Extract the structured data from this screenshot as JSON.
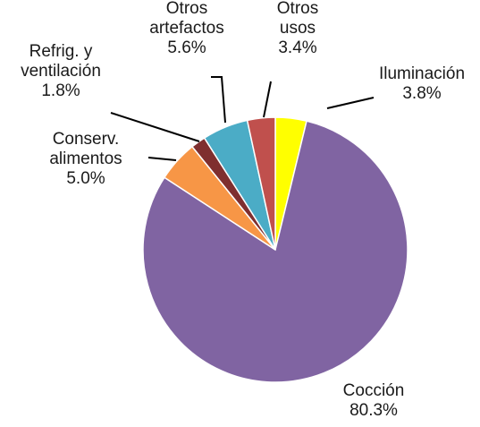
{
  "chart_data": {
    "type": "pie",
    "title": "",
    "series": [
      {
        "name": "",
        "slices": [
          {
            "label_lines": [
              "Iluminación"
            ],
            "value_text": "3.8%",
            "value": 3.8,
            "color": "#FFFF00"
          },
          {
            "label_lines": [
              "Cocción"
            ],
            "value_text": "80.3%",
            "value": 80.3,
            "color": "#8064A2"
          },
          {
            "label_lines": [
              "Conserv.",
              "alimentos"
            ],
            "value_text": "5.0%",
            "value": 5.0,
            "color": "#F79646"
          },
          {
            "label_lines": [
              "Refrig. y",
              "ventilación"
            ],
            "value_text": "1.8%",
            "value": 1.8,
            "color": "#7F2F2F"
          },
          {
            "label_lines": [
              "Otros",
              "artefactos"
            ],
            "value_text": "5.6%",
            "value": 5.6,
            "color": "#4BACC6"
          },
          {
            "label_lines": [
              "Otros",
              "usos"
            ],
            "value_text": "3.4%",
            "value": 3.4,
            "color": "#C0504D"
          }
        ]
      }
    ],
    "start_angle_deg": 0,
    "direction": "clockwise",
    "legend": "none",
    "data_labels": "outside-with-leaders"
  }
}
